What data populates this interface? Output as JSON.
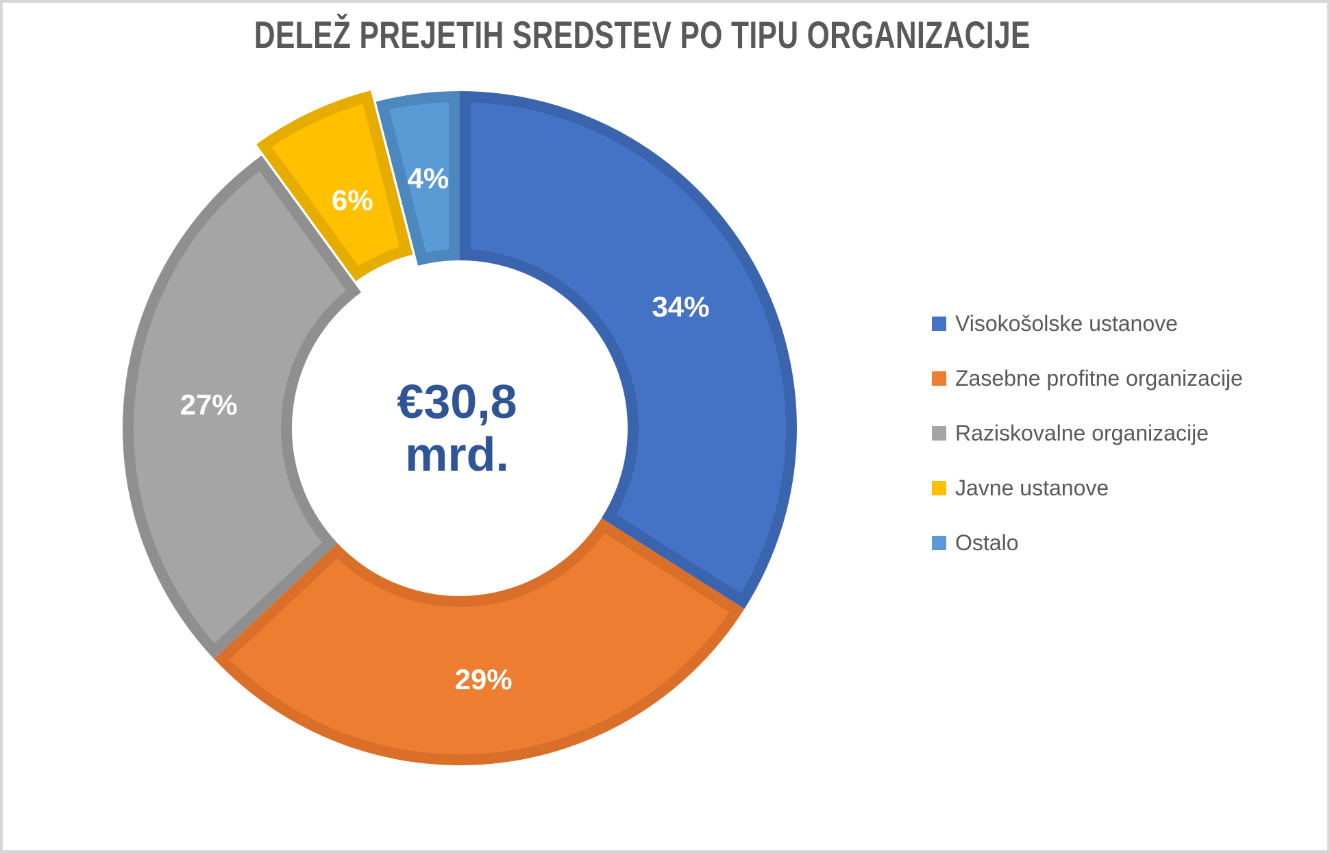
{
  "title": "DELEŽ PREJETIH SREDSTEV PO TIPU ORGANIZACIJE",
  "center_label": {
    "line1": "€30,8",
    "line2": "mrd."
  },
  "chart_data": {
    "type": "pie",
    "subtype": "donut",
    "title": "DELEŽ PREJETIH SREDSTEV PO TIPU ORGANIZACIJE",
    "center_total": "€30,8 mrd.",
    "legend_position": "right",
    "start_angle_deg": 0,
    "direction": "clockwise",
    "slices": [
      {
        "label": "Visokošolske ustanove",
        "value": 34,
        "display": "34%",
        "color": "#4472C4",
        "border_color": "#3B64AE",
        "exploded": false
      },
      {
        "label": "Zasebne profitne organizacije",
        "value": 29,
        "display": "29%",
        "color": "#ED7D31",
        "border_color": "#D96F28",
        "exploded": false
      },
      {
        "label": "Raziskovalne organizacije",
        "value": 27,
        "display": "27%",
        "color": "#A5A5A5",
        "border_color": "#8F8F8F",
        "exploded": false
      },
      {
        "label": "Javne ustanove",
        "value": 6,
        "display": "6%",
        "color": "#FFC000",
        "border_color": "#E6AC00",
        "exploded": true
      },
      {
        "label": "Ostalo",
        "value": 4,
        "display": "4%",
        "color": "#5B9BD5",
        "border_color": "#4C88BE",
        "exploded": false
      }
    ]
  },
  "colors": {
    "title_text": "#595959",
    "legend_text": "#595959",
    "center_text": "#2F5597",
    "slice_label_text": "#FFFFFF",
    "background": "#FFFFFF",
    "frame_border": "#D7D7D7"
  }
}
